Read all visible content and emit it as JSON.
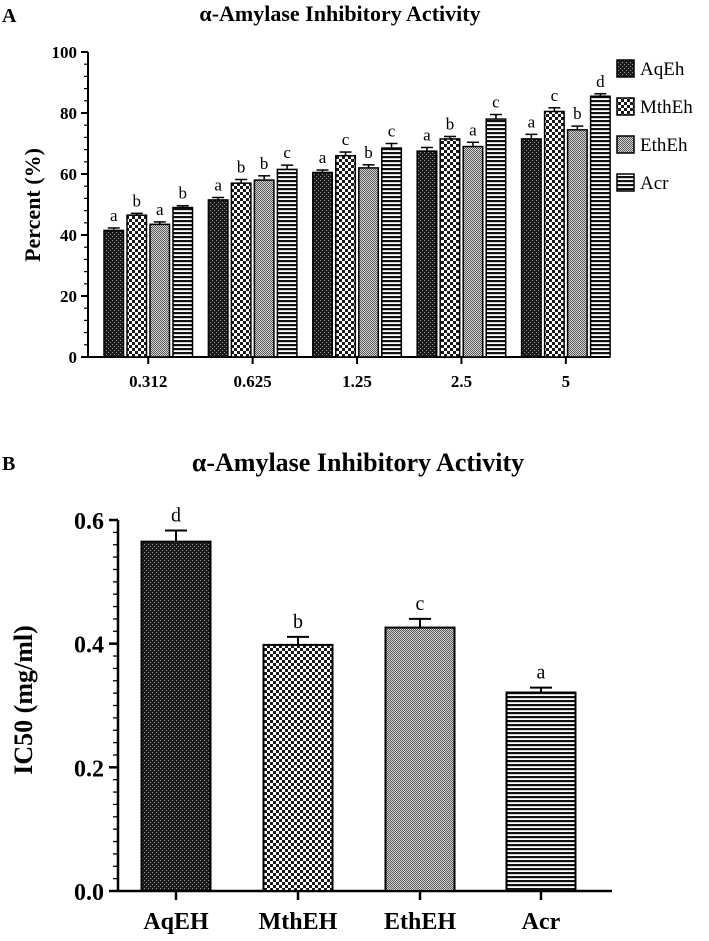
{
  "chart_data": [
    {
      "panel": "A",
      "type": "bar",
      "title": "α-Amylase Inhibitory Activity",
      "xlabel": "",
      "ylabel": "Percent (%)",
      "ylim": [
        0,
        100
      ],
      "yticks": [
        0,
        20,
        40,
        60,
        80,
        100
      ],
      "categories": [
        "0.312",
        "0.625",
        "1.25",
        "2.5",
        "5"
      ],
      "legend_position": "top-right",
      "series": [
        {
          "name": "AqEh",
          "pattern": "dots",
          "values": [
            41.5,
            51.5,
            60.5,
            67.5,
            71.5
          ],
          "errors": [
            0.8,
            0.8,
            0.8,
            1.2,
            1.5
          ],
          "letters": [
            "a",
            "a",
            "a",
            "a",
            "a"
          ]
        },
        {
          "name": "MthEh",
          "pattern": "checker",
          "values": [
            46.5,
            57.0,
            66.0,
            71.5,
            80.5
          ],
          "errors": [
            0.6,
            1.2,
            1.2,
            0.8,
            1.2
          ],
          "letters": [
            "b",
            "b",
            "c",
            "b",
            "c"
          ]
        },
        {
          "name": "EthEh",
          "pattern": "fine",
          "values": [
            43.5,
            58.0,
            62.0,
            69.0,
            74.5
          ],
          "errors": [
            0.8,
            1.4,
            1.0,
            1.4,
            1.2
          ],
          "letters": [
            "a",
            "b",
            "b",
            "a",
            "b"
          ]
        },
        {
          "name": "Acr",
          "pattern": "hlines",
          "values": [
            49.0,
            61.5,
            68.5,
            78.0,
            85.5
          ],
          "errors": [
            0.6,
            1.4,
            1.5,
            1.5,
            0.8
          ],
          "letters": [
            "b",
            "c",
            "c",
            "c",
            "d"
          ]
        }
      ]
    },
    {
      "panel": "B",
      "type": "bar",
      "title": "α-Amylase Inhibitory Activity",
      "xlabel": "",
      "ylabel": "IC50 (mg/ml)",
      "ylim": [
        0,
        0.6
      ],
      "yticks": [
        "0.0",
        "0.2",
        "0.4",
        "0.6"
      ],
      "categories": [
        "AqEH",
        "MthEH",
        "EthEH",
        "Acr"
      ],
      "patterns": [
        "dots",
        "checker",
        "fine",
        "hlines"
      ],
      "values": [
        0.565,
        0.398,
        0.426,
        0.321
      ],
      "errors": [
        0.018,
        0.013,
        0.014,
        0.008
      ],
      "letters": [
        "d",
        "b",
        "c",
        "a"
      ]
    }
  ]
}
